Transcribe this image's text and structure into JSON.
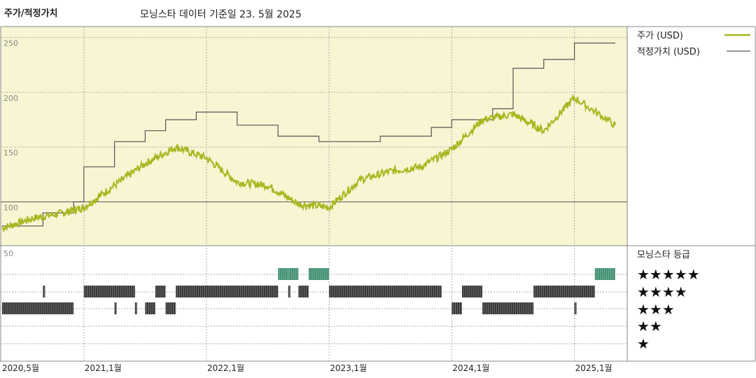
{
  "header": {
    "left_title": "주가/적정가치",
    "subtitle": "모닝스타 데이터 기준일 23. 5월 2025"
  },
  "colors": {
    "panel_bg": "#f8f5d3",
    "price": "#a8b51e",
    "fair_value": "#555555",
    "rating_five": "#3e8e6e",
    "rating_bar": "#333333"
  },
  "chart_data": [
    {
      "type": "line",
      "ylim": [
        60,
        260
      ],
      "yticks": [
        "250",
        "200",
        "150",
        "100"
      ],
      "ytick_values": [
        250,
        200,
        150,
        100
      ],
      "legend": {
        "placement": "right"
      },
      "x_dates": [
        "2020-05",
        "2020-08",
        "2020-11",
        "2021-01",
        "2021-04",
        "2021-07",
        "2021-10",
        "2022-01",
        "2022-04",
        "2022-07",
        "2022-10",
        "2023-01",
        "2023-04",
        "2023-07",
        "2023-10",
        "2024-01",
        "2024-04",
        "2024-07",
        "2024-10",
        "2025-01",
        "2025-05"
      ],
      "series": [
        {
          "name": "주가 (USD)",
          "values": [
            76,
            85,
            90,
            95,
            115,
            135,
            150,
            140,
            118,
            115,
            98,
            95,
            120,
            128,
            132,
            148,
            175,
            180,
            165,
            195,
            170
          ]
        },
        {
          "name": "적정가치 (USD)",
          "steps": [
            [
              "2020-05",
              78
            ],
            [
              "2020-09",
              90
            ],
            [
              "2020-12",
              100
            ],
            [
              "2021-01",
              132
            ],
            [
              "2021-04",
              155
            ],
            [
              "2021-07",
              165
            ],
            [
              "2021-09",
              175
            ],
            [
              "2021-12",
              182
            ],
            [
              "2022-04",
              170
            ],
            [
              "2022-08",
              160
            ],
            [
              "2022-12",
              155
            ],
            [
              "2023-06",
              160
            ],
            [
              "2023-11",
              168
            ],
            [
              "2024-01",
              175
            ],
            [
              "2024-05",
              185
            ],
            [
              "2024-07",
              222
            ],
            [
              "2024-10",
              230
            ],
            [
              "2025-01",
              245
            ],
            [
              "2025-05",
              245
            ]
          ]
        }
      ],
      "xlabels": [
        "2020,5월",
        "2021,1월",
        "2022,1월",
        "2023,1월",
        "2024,1월",
        "2025,1월"
      ]
    },
    {
      "type": "bar",
      "title": "모닝스타 등급",
      "ytick": "50",
      "levels": [
        "★★★★★",
        "★★★★",
        "★★★",
        "★★",
        "★"
      ],
      "segments": [
        {
          "stars": 3,
          "from": "2020-05",
          "to": "2020-12"
        },
        {
          "stars": 4,
          "from": "2020-09",
          "to": "2020-09"
        },
        {
          "stars": 4,
          "from": "2021-01",
          "to": "2021-06"
        },
        {
          "stars": 3,
          "from": "2021-04",
          "to": "2021-04"
        },
        {
          "stars": 3,
          "from": "2021-06",
          "to": "2021-06"
        },
        {
          "stars": 3,
          "from": "2021-07",
          "to": "2021-08"
        },
        {
          "stars": 4,
          "from": "2021-08",
          "to": "2021-09"
        },
        {
          "stars": 3,
          "from": "2021-09",
          "to": "2021-10"
        },
        {
          "stars": 4,
          "from": "2021-10",
          "to": "2022-08"
        },
        {
          "stars": 5,
          "from": "2022-08",
          "to": "2022-09"
        },
        {
          "stars": 5,
          "from": "2022-09",
          "to": "2022-10"
        },
        {
          "stars": 4,
          "from": "2022-09",
          "to": "2022-09"
        },
        {
          "stars": 4,
          "from": "2022-10",
          "to": "2022-11"
        },
        {
          "stars": 5,
          "from": "2022-11",
          "to": "2023-01"
        },
        {
          "stars": 4,
          "from": "2023-01",
          "to": "2023-12"
        },
        {
          "stars": 3,
          "from": "2024-01",
          "to": "2024-02"
        },
        {
          "stars": 4,
          "from": "2024-02",
          "to": "2024-04"
        },
        {
          "stars": 3,
          "from": "2024-04",
          "to": "2024-09"
        },
        {
          "stars": 4,
          "from": "2024-09",
          "to": "2025-03"
        },
        {
          "stars": 3,
          "from": "2025-01",
          "to": "2025-01"
        },
        {
          "stars": 5,
          "from": "2025-03",
          "to": "2025-05"
        }
      ]
    }
  ]
}
